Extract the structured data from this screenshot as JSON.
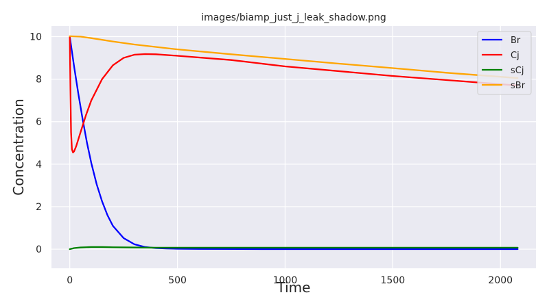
{
  "chart_data": {
    "type": "line",
    "title": "images/biamp_just_j_leak_shadow.png",
    "xlabel": "Time",
    "ylabel": "Concentration",
    "xlim": [
      -85,
      2165
    ],
    "ylim": [
      -0.9,
      10.5
    ],
    "xticks": [
      0,
      500,
      1000,
      1500,
      2000
    ],
    "yticks": [
      0,
      2,
      4,
      6,
      8,
      10
    ],
    "grid": true,
    "legend_position": "top-right",
    "colors": {
      "background": "#eaeaf2",
      "grid": "#ffffff"
    },
    "series": [
      {
        "name": "Br",
        "color": "#0000ff",
        "x": [
          0,
          10,
          20,
          40,
          60,
          80,
          100,
          125,
          150,
          175,
          200,
          250,
          300,
          350,
          400,
          450,
          500,
          600,
          800,
          1000,
          1500,
          2080
        ],
        "y": [
          10,
          9.3,
          8.6,
          7.3,
          6.1,
          5.0,
          4.05,
          3.05,
          2.25,
          1.6,
          1.1,
          0.52,
          0.23,
          0.1,
          0.05,
          0.03,
          0.02,
          0.01,
          0.005,
          0.003,
          0.002,
          0.001
        ]
      },
      {
        "name": "Cj",
        "color": "#ff0000",
        "x": [
          0,
          3,
          6,
          10,
          15,
          20,
          30,
          50,
          75,
          100,
          150,
          200,
          250,
          300,
          350,
          400,
          500,
          750,
          1000,
          1500,
          2080
        ],
        "y": [
          10,
          7.5,
          5.5,
          4.7,
          4.55,
          4.6,
          4.85,
          5.5,
          6.3,
          7.0,
          8.0,
          8.65,
          9.0,
          9.15,
          9.18,
          9.17,
          9.1,
          8.9,
          8.6,
          8.15,
          7.7
        ]
      },
      {
        "name": "sCj",
        "color": "#008000",
        "x": [
          0,
          20,
          50,
          100,
          150,
          200,
          300,
          400,
          500,
          750,
          1000,
          1500,
          2080
        ],
        "y": [
          0,
          0.05,
          0.08,
          0.1,
          0.1,
          0.09,
          0.08,
          0.07,
          0.07,
          0.07,
          0.07,
          0.07,
          0.07
        ]
      },
      {
        "name": "sBr",
        "color": "#ffa500",
        "x": [
          0,
          50,
          100,
          200,
          300,
          500,
          750,
          1000,
          1250,
          1500,
          1750,
          2080
        ],
        "y": [
          10.02,
          10.0,
          9.93,
          9.77,
          9.63,
          9.4,
          9.17,
          8.95,
          8.73,
          8.52,
          8.3,
          8.05
        ]
      }
    ]
  }
}
